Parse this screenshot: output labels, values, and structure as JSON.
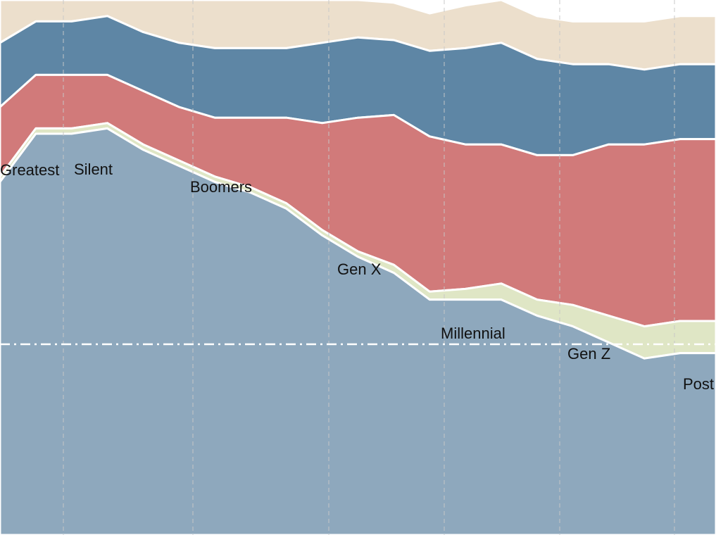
{
  "chart_data": {
    "type": "area",
    "stacked": true,
    "grid": "vertical dashed",
    "reference_line": "dash-dot horizontal line",
    "x": [
      0,
      5,
      10,
      15,
      20,
      25,
      30,
      35,
      40,
      45,
      50,
      55,
      60,
      65,
      70,
      75,
      80,
      85,
      90,
      95,
      100
    ],
    "series": [
      {
        "name": "Greatest",
        "color": "#8ea8bd",
        "values": [
          0.66,
          0.75,
          0.75,
          0.76,
          0.72,
          0.69,
          0.66,
          0.64,
          0.61,
          0.56,
          0.52,
          0.49,
          0.44,
          0.44,
          0.44,
          0.41,
          0.39,
          0.36,
          0.33,
          0.34,
          0.34
        ]
      },
      {
        "name": "Silent",
        "color": "#dfe6c5",
        "values": [
          0.01,
          0.01,
          0.01,
          0.01,
          0.01,
          0.01,
          0.01,
          0.01,
          0.01,
          0.01,
          0.01,
          0.015,
          0.015,
          0.02,
          0.03,
          0.03,
          0.04,
          0.05,
          0.06,
          0.06,
          0.06
        ]
      },
      {
        "name": "Boomers",
        "color": "#d17a7a",
        "values": [
          0.13,
          0.1,
          0.1,
          0.09,
          0.1,
          0.1,
          0.11,
          0.13,
          0.16,
          0.2,
          0.25,
          0.28,
          0.29,
          0.27,
          0.26,
          0.27,
          0.28,
          0.32,
          0.34,
          0.34,
          0.34
        ]
      },
      {
        "name": "Gen X",
        "color": "#5e86a5",
        "values": [
          0.12,
          0.1,
          0.1,
          0.11,
          0.11,
          0.12,
          0.13,
          0.13,
          0.13,
          0.15,
          0.15,
          0.14,
          0.16,
          0.18,
          0.19,
          0.18,
          0.17,
          0.15,
          0.14,
          0.14,
          0.14
        ]
      },
      {
        "name": "Millennial",
        "color": "#ecdfcc",
        "values": [
          0.08,
          0.04,
          0.04,
          0.03,
          0.06,
          0.08,
          0.09,
          0.09,
          0.09,
          0.08,
          0.07,
          0.07,
          0.07,
          0.08,
          0.08,
          0.08,
          0.08,
          0.08,
          0.09,
          0.09,
          0.09
        ]
      },
      {
        "name": "Gen Z",
        "color": "#c9a9c3",
        "values": [
          0,
          0,
          0,
          0,
          0,
          0,
          0,
          0,
          0,
          0,
          0,
          0,
          0,
          0,
          0,
          0,
          0,
          0,
          0,
          0,
          0
        ]
      },
      {
        "name": "Post",
        "color": "#a0c2b5",
        "values": [
          0,
          0,
          0,
          0,
          0,
          0,
          0,
          0,
          0,
          0,
          0,
          0,
          0,
          0,
          0,
          0,
          0,
          0,
          0,
          0,
          0
        ]
      }
    ],
    "labels": [
      {
        "series": "Greatest",
        "text": "Greatest"
      },
      {
        "series": "Silent",
        "text": "Silent"
      },
      {
        "series": "Boomers",
        "text": "Boomers"
      },
      {
        "series": "Gen X",
        "text": "Gen X"
      },
      {
        "series": "Millennial",
        "text": "Millennial"
      },
      {
        "series": "Gen Z",
        "text": "Gen Z"
      },
      {
        "series": "Post",
        "text": "Post"
      }
    ]
  },
  "colors": {
    "stroke": "#ffffff",
    "grid": "#c8c8c8",
    "reference": "#ffffff"
  }
}
